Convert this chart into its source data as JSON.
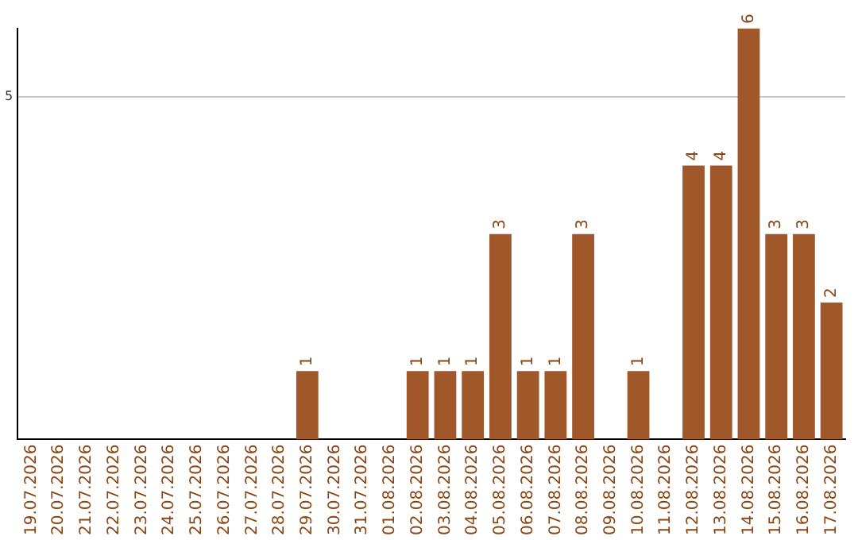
{
  "chart_data": {
    "type": "bar",
    "categories": [
      "19.07.2026",
      "20.07.2026",
      "21.07.2026",
      "22.07.2026",
      "23.07.2026",
      "24.07.2026",
      "25.07.2026",
      "26.07.2026",
      "27.07.2026",
      "28.07.2026",
      "29.07.2026",
      "30.07.2026",
      "31.07.2026",
      "01.08.2026",
      "02.08.2026",
      "03.08.2026",
      "04.08.2026",
      "05.08.2026",
      "06.08.2026",
      "07.08.2026",
      "08.08.2026",
      "09.08.2026",
      "10.08.2026",
      "11.08.2026",
      "12.08.2026",
      "13.08.2026",
      "14.08.2026",
      "15.08.2026",
      "16.08.2026",
      "17.08.2026"
    ],
    "values": [
      0,
      0,
      0,
      0,
      0,
      0,
      0,
      0,
      0,
      0,
      1,
      0,
      0,
      0,
      1,
      1,
      1,
      3,
      1,
      1,
      3,
      0,
      1,
      0,
      4,
      4,
      6,
      3,
      3,
      2
    ],
    "value_labels": [
      null,
      null,
      null,
      null,
      null,
      null,
      null,
      null,
      null,
      null,
      "1",
      null,
      null,
      null,
      "1",
      "1",
      "1",
      "3",
      "1",
      "1",
      "3",
      null,
      "1",
      null,
      "4",
      "4",
      "6",
      "3",
      "3",
      "2"
    ],
    "color": "#a0582a",
    "ylim": [
      0,
      6
    ],
    "yticks": [
      5
    ],
    "grid": "y",
    "legend": false
  }
}
